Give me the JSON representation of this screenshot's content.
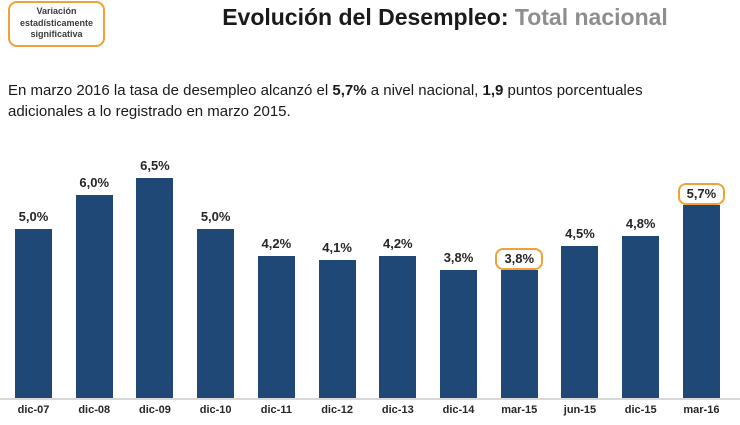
{
  "badge": {
    "label": "Variación estadísticamente significativa"
  },
  "title": {
    "main": "Evolución del Desempleo:",
    "highlight": " Total nacional"
  },
  "summary": {
    "segments": [
      {
        "text": "En marzo 2016 la tasa de desempleo alcanzó el ",
        "bold": false
      },
      {
        "text": "5,7%",
        "bold": true
      },
      {
        "text": " a nivel nacional, ",
        "bold": false
      },
      {
        "text": "1,9",
        "bold": true
      },
      {
        "text": " puntos porcentuales adicionales a lo registrado en marzo 2015.",
        "bold": false
      }
    ]
  },
  "chart_data": {
    "type": "bar",
    "title": "Evolución del Desempleo: Total nacional",
    "categories": [
      "dic-07",
      "dic-08",
      "dic-09",
      "dic-10",
      "dic-11",
      "dic-12",
      "dic-13",
      "dic-14",
      "mar-15",
      "jun-15",
      "dic-15",
      "mar-16"
    ],
    "values": [
      5.0,
      6.0,
      6.5,
      5.0,
      4.2,
      4.1,
      4.2,
      3.8,
      3.8,
      4.5,
      4.8,
      5.7
    ],
    "value_labels": [
      "5,0%",
      "6,0%",
      "6,5%",
      "5,0%",
      "4,2%",
      "4,1%",
      "4,2%",
      "3,8%",
      "3,8%",
      "4,5%",
      "4,8%",
      "5,7%"
    ],
    "highlighted_indices": [
      8,
      11
    ],
    "highlight_meaning": "Variación estadísticamente significativa",
    "xlabel": "",
    "ylabel": "",
    "ylim": [
      0,
      7.3
    ],
    "grid": false,
    "legend": false,
    "y_axis_visible": false,
    "bar_color": "#204876",
    "highlight_border_color": "#F1A135"
  },
  "colors": {
    "bar": "#204876",
    "accent_orange": "#F1A135",
    "title_main": "#1a1a1a",
    "title_highlight": "#8e8e8e",
    "axis_line": "#d8d8d8",
    "label_text": "#262626",
    "background": "#ffffff"
  }
}
